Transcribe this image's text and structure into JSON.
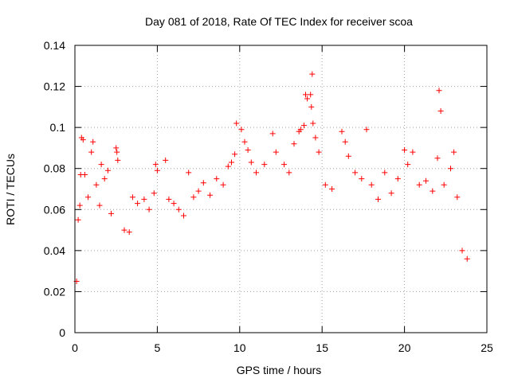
{
  "chart_data": {
    "type": "scatter",
    "title": "Day 081 of 2018, Rate Of TEC Index for receiver scoa",
    "xlabel": "GPS time / hours",
    "ylabel": "ROTI / TECUs",
    "xlim": [
      0,
      25
    ],
    "ylim": [
      0,
      0.14
    ],
    "x_ticks": [
      0,
      5,
      10,
      15,
      20,
      25
    ],
    "x_tick_labels": [
      "0",
      "5",
      "10",
      "15",
      "20",
      "25"
    ],
    "y_ticks": [
      0,
      0.02,
      0.04,
      0.06,
      0.08,
      0.1,
      0.12,
      0.14
    ],
    "y_tick_labels": [
      "0",
      "0.02",
      "0.04",
      "0.06",
      "0.08",
      "0.1",
      "0.12",
      "0.14"
    ],
    "grid": true,
    "marker": "plus",
    "marker_color": "#ff0000",
    "points": [
      [
        0.1,
        0.025
      ],
      [
        0.2,
        0.055
      ],
      [
        0.3,
        0.062
      ],
      [
        0.35,
        0.077
      ],
      [
        0.4,
        0.095
      ],
      [
        0.5,
        0.094
      ],
      [
        0.6,
        0.077
      ],
      [
        0.8,
        0.066
      ],
      [
        1.0,
        0.088
      ],
      [
        1.1,
        0.093
      ],
      [
        1.3,
        0.072
      ],
      [
        1.5,
        0.062
      ],
      [
        1.6,
        0.082
      ],
      [
        1.8,
        0.075
      ],
      [
        2.0,
        0.079
      ],
      [
        2.2,
        0.058
      ],
      [
        2.5,
        0.09
      ],
      [
        2.55,
        0.088
      ],
      [
        2.6,
        0.084
      ],
      [
        3.0,
        0.05
      ],
      [
        3.3,
        0.049
      ],
      [
        3.5,
        0.066
      ],
      [
        3.8,
        0.063
      ],
      [
        4.2,
        0.065
      ],
      [
        4.5,
        0.06
      ],
      [
        4.8,
        0.068
      ],
      [
        4.9,
        0.082
      ],
      [
        5.0,
        0.079
      ],
      [
        5.5,
        0.084
      ],
      [
        5.7,
        0.065
      ],
      [
        6.0,
        0.063
      ],
      [
        6.3,
        0.06
      ],
      [
        6.6,
        0.057
      ],
      [
        6.9,
        0.078
      ],
      [
        7.2,
        0.066
      ],
      [
        7.5,
        0.069
      ],
      [
        7.8,
        0.073
      ],
      [
        8.2,
        0.067
      ],
      [
        8.6,
        0.075
      ],
      [
        9.0,
        0.072
      ],
      [
        9.3,
        0.081
      ],
      [
        9.5,
        0.083
      ],
      [
        9.7,
        0.087
      ],
      [
        9.8,
        0.102
      ],
      [
        10.1,
        0.099
      ],
      [
        10.3,
        0.093
      ],
      [
        10.5,
        0.089
      ],
      [
        10.7,
        0.083
      ],
      [
        11.0,
        0.078
      ],
      [
        11.5,
        0.082
      ],
      [
        12.0,
        0.097
      ],
      [
        12.2,
        0.088
      ],
      [
        12.7,
        0.082
      ],
      [
        13.0,
        0.078
      ],
      [
        13.3,
        0.092
      ],
      [
        13.6,
        0.098
      ],
      [
        13.7,
        0.099
      ],
      [
        13.9,
        0.101
      ],
      [
        14.0,
        0.116
      ],
      [
        14.1,
        0.114
      ],
      [
        14.3,
        0.116
      ],
      [
        14.35,
        0.11
      ],
      [
        14.4,
        0.126
      ],
      [
        14.45,
        0.102
      ],
      [
        14.6,
        0.095
      ],
      [
        14.8,
        0.088
      ],
      [
        15.2,
        0.072
      ],
      [
        15.6,
        0.07
      ],
      [
        16.2,
        0.098
      ],
      [
        16.4,
        0.093
      ],
      [
        16.6,
        0.086
      ],
      [
        17.0,
        0.078
      ],
      [
        17.4,
        0.075
      ],
      [
        17.7,
        0.099
      ],
      [
        18.0,
        0.072
      ],
      [
        18.4,
        0.065
      ],
      [
        18.8,
        0.078
      ],
      [
        19.2,
        0.068
      ],
      [
        19.6,
        0.075
      ],
      [
        20.0,
        0.089
      ],
      [
        20.2,
        0.082
      ],
      [
        20.5,
        0.088
      ],
      [
        20.9,
        0.072
      ],
      [
        21.3,
        0.074
      ],
      [
        21.7,
        0.069
      ],
      [
        22.0,
        0.085
      ],
      [
        22.1,
        0.118
      ],
      [
        22.2,
        0.108
      ],
      [
        22.4,
        0.072
      ],
      [
        22.8,
        0.08
      ],
      [
        23.0,
        0.088
      ],
      [
        23.2,
        0.066
      ],
      [
        23.5,
        0.04
      ],
      [
        23.8,
        0.036
      ]
    ]
  }
}
